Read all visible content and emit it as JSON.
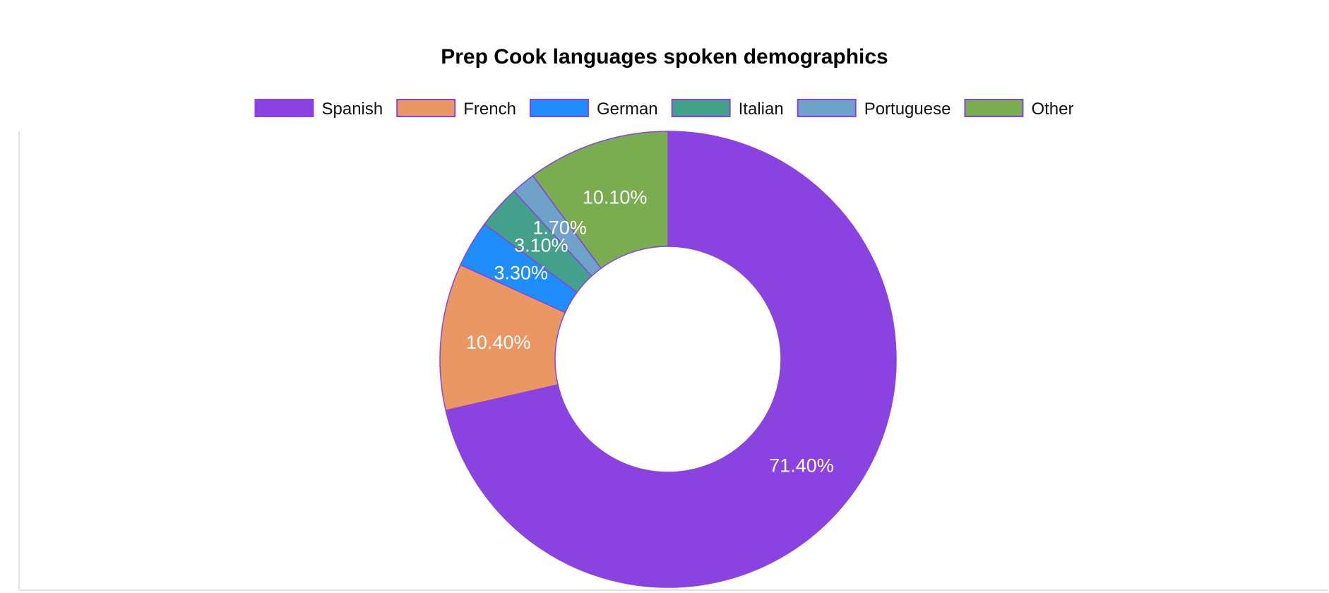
{
  "chart_data": {
    "type": "pie",
    "variant": "donut",
    "title": "Prep Cook languages spoken demographics",
    "legend_position": "top",
    "start_angle_deg": 0,
    "direction": "clockwise",
    "slice_border_color": "#8a42e0",
    "slices": [
      {
        "label": "Spanish",
        "value": 71.4,
        "value_label": "71.40%",
        "color": "#8a42e0"
      },
      {
        "label": "French",
        "value": 10.4,
        "value_label": "10.40%",
        "color": "#ea9764"
      },
      {
        "label": "German",
        "value": 3.3,
        "value_label": "3.30%",
        "color": "#1f8efc"
      },
      {
        "label": "Italian",
        "value": 3.1,
        "value_label": "3.10%",
        "color": "#43a08a"
      },
      {
        "label": "Portuguese",
        "value": 1.7,
        "value_label": "1.70%",
        "color": "#6ea2c8"
      },
      {
        "label": "Other",
        "value": 10.1,
        "value_label": "10.10%",
        "color": "#7aad4f"
      }
    ]
  }
}
